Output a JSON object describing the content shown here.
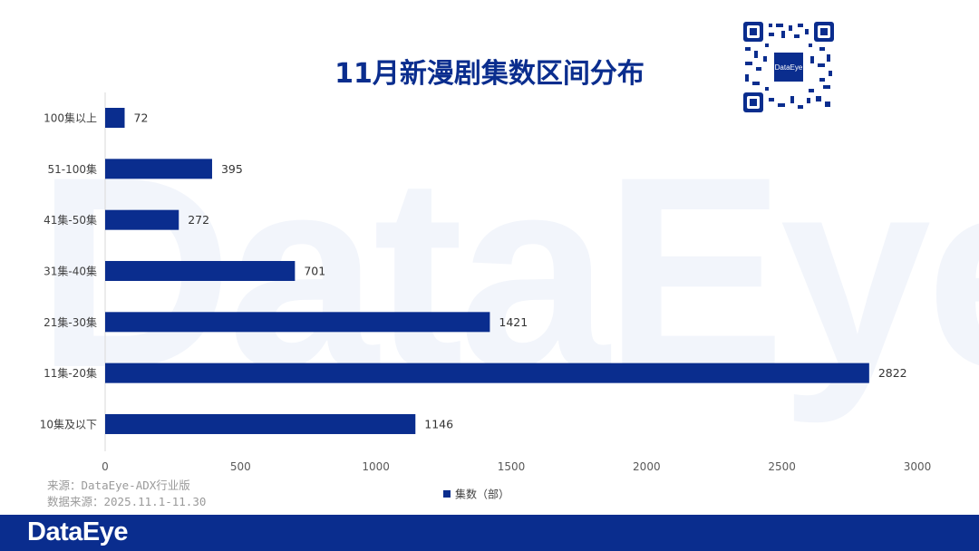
{
  "watermark": "DataEye",
  "title": "11月新漫剧集数区间分布",
  "qr": {
    "center_label": "DataEye"
  },
  "source_lines": [
    "来源：DataEye-ADX行业版",
    "数据来源：2025.11.1-11.30"
  ],
  "footer": {
    "logo": "DataEye"
  },
  "colors": {
    "bar": "#0a2d8e",
    "title": "#0a2d8e",
    "footer": "#0a2d8e"
  },
  "chart_data": {
    "type": "bar",
    "orientation": "horizontal",
    "categories": [
      "100集以上",
      "51-100集",
      "41集-50集",
      "31集-40集",
      "21集-30集",
      "11集-20集",
      "10集及以下"
    ],
    "series": [
      {
        "name": "集数（部）",
        "values": [
          72,
          395,
          272,
          701,
          1421,
          2822,
          1146
        ]
      }
    ],
    "xlim": [
      0,
      3000
    ],
    "xticks": [
      0,
      500,
      1000,
      1500,
      2000,
      2500,
      3000
    ],
    "data_labels": true,
    "grid": false,
    "legend": "bottom"
  }
}
